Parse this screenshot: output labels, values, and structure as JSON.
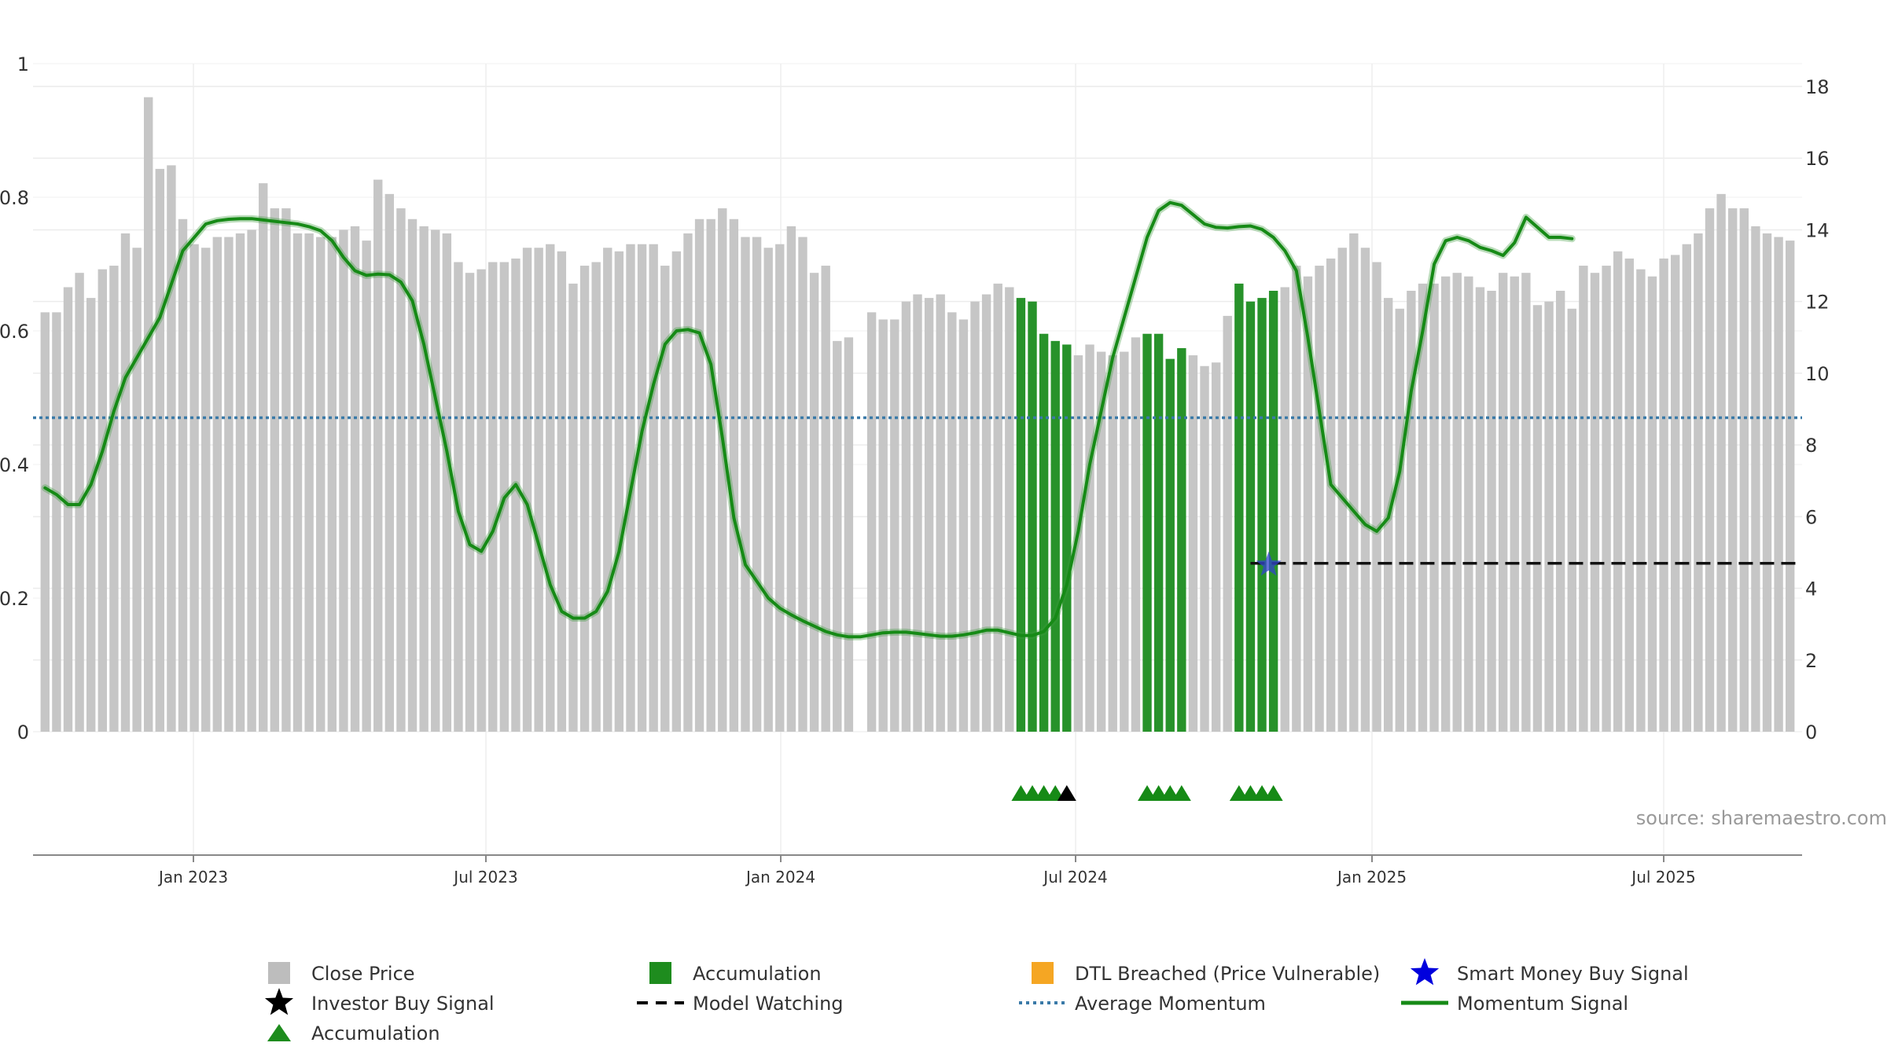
{
  "chart_data": {
    "type": "bar",
    "title": "",
    "source": "source: sharemaestro.com",
    "x_ticks": [
      "Jan 2023",
      "Jul 2023",
      "Jan 2024",
      "Jul 2024",
      "Jan 2025",
      "Jul 2025"
    ],
    "left_axis": {
      "ylim": [
        0,
        1
      ],
      "ticks": [
        "0",
        "0.2",
        "0.4",
        "0.6",
        "0.8",
        "1"
      ]
    },
    "right_axis": {
      "ylim": [
        0,
        18
      ],
      "ticks": [
        "0",
        "2",
        "4",
        "6",
        "8",
        "10",
        "12",
        "14",
        "16",
        "18"
      ]
    },
    "close_price": [
      11.7,
      11.7,
      12.4,
      12.8,
      12.1,
      12.9,
      13.0,
      13.9,
      13.5,
      17.7,
      15.7,
      15.8,
      14.3,
      13.6,
      13.5,
      13.8,
      13.8,
      13.9,
      14.0,
      15.3,
      14.6,
      14.6,
      13.9,
      13.9,
      13.8,
      13.8,
      14.0,
      14.1,
      13.7,
      15.4,
      15.0,
      14.6,
      14.3,
      14.1,
      14.0,
      13.9,
      13.1,
      12.8,
      12.9,
      13.1,
      13.1,
      13.2,
      13.5,
      13.5,
      13.6,
      13.4,
      12.5,
      13.0,
      13.1,
      13.5,
      13.4,
      13.6,
      13.6,
      13.6,
      13.0,
      13.4,
      13.9,
      14.3,
      14.3,
      14.6,
      14.3,
      13.8,
      13.8,
      13.5,
      13.6,
      14.1,
      13.8,
      12.8,
      13.0,
      10.9,
      11.0,
      null,
      11.7,
      11.5,
      11.5,
      12.0,
      12.2,
      12.1,
      12.2,
      11.7,
      11.5,
      12.0,
      12.2,
      12.5,
      12.4,
      12.1,
      12.0,
      11.1,
      10.9,
      10.8,
      10.5,
      10.8,
      10.6,
      10.5,
      10.6,
      11.0,
      11.1,
      11.1,
      10.4,
      10.7,
      10.5,
      10.2,
      10.3,
      11.6,
      12.5,
      12.0,
      12.1,
      12.3,
      12.4,
      13.0,
      12.7,
      13.0,
      13.2,
      13.5,
      13.9,
      13.5,
      13.1,
      12.1,
      11.8,
      12.3,
      12.5,
      12.5,
      12.7,
      12.8,
      12.7,
      12.4,
      12.3,
      12.8,
      12.7,
      12.8,
      11.9,
      12.0,
      12.3,
      11.8,
      13.0,
      12.8,
      13.0,
      13.4,
      13.2,
      12.9,
      12.7,
      13.2,
      13.3,
      13.6,
      13.9,
      14.6,
      15.0,
      14.6,
      14.6,
      14.1,
      13.9,
      13.8,
      13.7
    ],
    "accumulation_bars": [
      85,
      86,
      87,
      88,
      89,
      96,
      97,
      98,
      99,
      104,
      105,
      106,
      107
    ],
    "momentum_signal": [
      0.365,
      0.355,
      0.34,
      0.34,
      0.37,
      0.42,
      0.48,
      0.53,
      0.56,
      0.59,
      0.62,
      0.67,
      0.72,
      0.74,
      0.76,
      0.765,
      0.767,
      0.768,
      0.768,
      0.766,
      0.764,
      0.762,
      0.76,
      0.756,
      0.75,
      0.735,
      0.71,
      0.69,
      0.683,
      0.685,
      0.684,
      0.673,
      0.645,
      0.58,
      0.5,
      0.42,
      0.33,
      0.28,
      0.27,
      0.3,
      0.35,
      0.37,
      0.34,
      0.28,
      0.22,
      0.18,
      0.17,
      0.17,
      0.18,
      0.21,
      0.27,
      0.36,
      0.45,
      0.52,
      0.58,
      0.6,
      0.602,
      0.597,
      0.55,
      0.44,
      0.32,
      0.25,
      0.225,
      0.2,
      0.185,
      0.175,
      0.166,
      0.158,
      0.15,
      0.145,
      0.142,
      0.142,
      0.145,
      0.148,
      0.149,
      0.149,
      0.147,
      0.145,
      0.143,
      0.143,
      0.145,
      0.148,
      0.152,
      0.152,
      0.148,
      0.144,
      0.144,
      0.15,
      0.17,
      0.22,
      0.3,
      0.4,
      0.48,
      0.56,
      0.62,
      0.68,
      0.74,
      0.78,
      0.792,
      0.788,
      0.774,
      0.76,
      0.755,
      0.754,
      0.756,
      0.757,
      0.752,
      0.74,
      0.72,
      0.69,
      0.59,
      0.48,
      0.37,
      0.35,
      0.33,
      0.31,
      0.3,
      0.32,
      0.39,
      0.51,
      0.6,
      0.7,
      0.735,
      0.74,
      0.735,
      0.725,
      0.72,
      0.713,
      0.732,
      0.77,
      0.755,
      0.74,
      0.74,
      0.738
    ],
    "average_momentum": 0.47,
    "model_watching": {
      "y": 0.252,
      "from_index": 105,
      "label": "Model Watching"
    },
    "smart_money_buy_signal": {
      "index": 107,
      "y": 0.252
    },
    "accumulation_markers": [
      85,
      86,
      87,
      88,
      96,
      97,
      98,
      99,
      104,
      105,
      106,
      107
    ],
    "investor_buy_markers": [
      89
    ],
    "legend": [
      {
        "label": "Close Price",
        "color": "#bdbdbd",
        "symbol": "square"
      },
      {
        "label": "Accumulation",
        "color": "#1e8c1e",
        "symbol": "square"
      },
      {
        "label": "DTL Breached (Price Vulnerable)",
        "color": "#f5a623",
        "symbol": "square"
      },
      {
        "label": "Smart Money Buy Signal",
        "color": "#0000dd",
        "symbol": "star"
      },
      {
        "label": "Investor Buy Signal",
        "color": "#000000",
        "symbol": "star"
      },
      {
        "label": "Model Watching",
        "color": "#000000",
        "symbol": "dash"
      },
      {
        "label": "Average Momentum",
        "color": "#3a7aa8",
        "symbol": "dot"
      },
      {
        "label": "Momentum Signal",
        "color": "#168a16",
        "symbol": "line"
      },
      {
        "label": "Accumulation",
        "color": "#1e8c1e",
        "symbol": "triangle"
      }
    ]
  }
}
